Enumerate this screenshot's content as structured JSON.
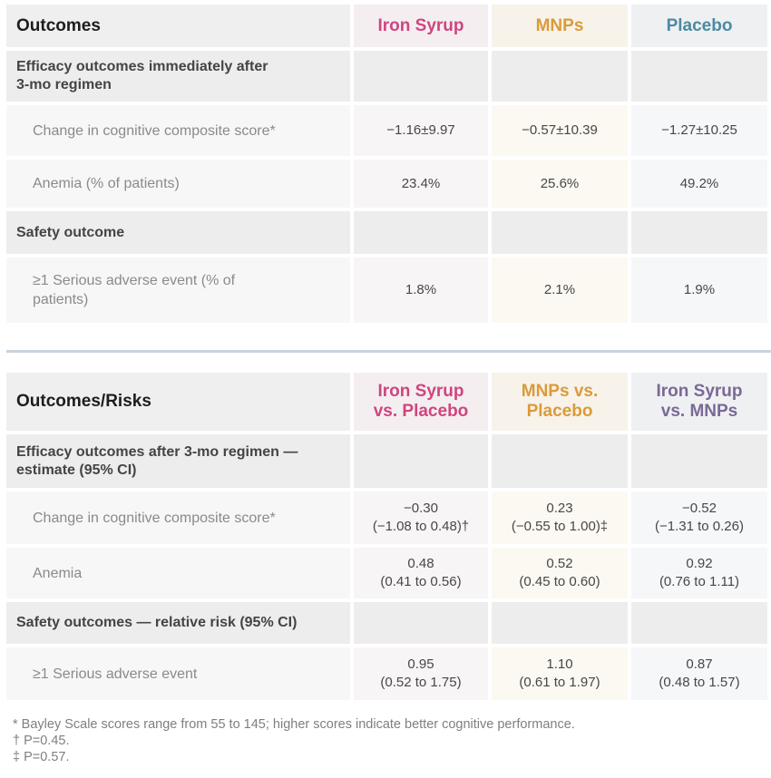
{
  "table1": {
    "header": {
      "outcomes": "Outcomes",
      "iron_syrup": "Iron Syrup",
      "mnps": "MNPs",
      "placebo": "Placebo"
    },
    "section1_label": "Efficacy outcomes immediately after 3-mo regimen",
    "rows_efficacy": [
      {
        "label": "Change in cognitive composite score*",
        "iron": "−1.16±9.97",
        "mnps": "−0.57±10.39",
        "placebo": "−1.27±10.25"
      },
      {
        "label": "Anemia (% of patients)",
        "iron": "23.4%",
        "mnps": "25.6%",
        "placebo": "49.2%"
      }
    ],
    "section2_label": "Safety outcome",
    "rows_safety": [
      {
        "label": "≥1 Serious adverse event (% of patients)",
        "iron": "1.8%",
        "mnps": "2.1%",
        "placebo": "1.9%"
      }
    ]
  },
  "table2": {
    "header": {
      "outcomes": "Outcomes/Risks",
      "iron_vs_placebo": "Iron Syrup vs. Placebo",
      "mnps_vs_placebo": "MNPs vs. Placebo",
      "iron_vs_mnps": "Iron Syrup vs. MNPs"
    },
    "section1_label": "Efficacy outcomes after 3-mo regimen — estimate (95% CI)",
    "rows_efficacy": [
      {
        "label": "Change in cognitive composite score*",
        "a_est": "−0.30",
        "a_ci": "(−1.08 to 0.48)†",
        "b_est": "0.23",
        "b_ci": "(−0.55 to 1.00)‡",
        "c_est": "−0.52",
        "c_ci": "(−1.31 to 0.26)"
      },
      {
        "label": "Anemia",
        "a_est": "0.48",
        "a_ci": "(0.41 to 0.56)",
        "b_est": "0.52",
        "b_ci": "(0.45 to 0.60)",
        "c_est": "0.92",
        "c_ci": "(0.76 to 1.11)"
      }
    ],
    "section2_label": "Safety outcomes — relative risk (95% CI)",
    "rows_safety": [
      {
        "label": "≥1 Serious adverse event",
        "a_est": "0.95",
        "a_ci": "(0.52 to 1.75)",
        "b_est": "1.10",
        "b_ci": "(0.61 to 1.97)",
        "c_est": "0.87",
        "c_ci": "(0.48 to 1.57)"
      }
    ]
  },
  "footnotes": {
    "star": "* Bayley Scale scores range from 55 to 145; higher scores indicate better cognitive performance.",
    "dagger": "† P=0.45.",
    "ddagger": "‡ P=0.57."
  },
  "colors": {
    "iron_syrup": "#d0457e",
    "mnps": "#dc9a3a",
    "placebo": "#4d8aa3",
    "iron_vs_mnps": "#7a6996"
  }
}
